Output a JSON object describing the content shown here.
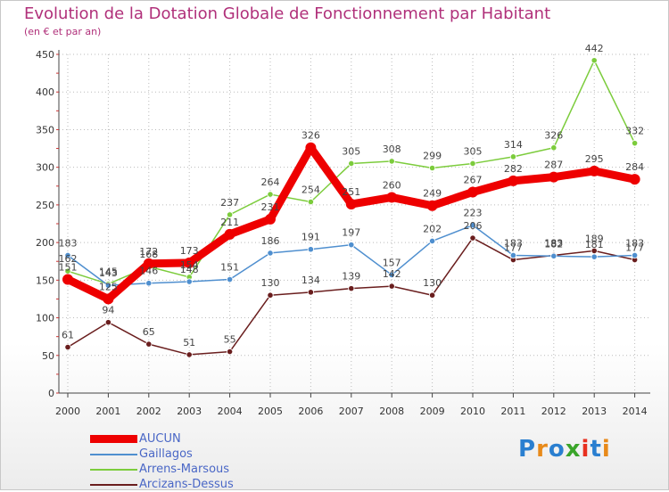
{
  "title": "Evolution de la Dotation Globale de Fonctionnement par Habitant",
  "subtitle": "(en € et par an)",
  "chart_data": {
    "type": "line",
    "title": "Evolution de la Dotation Globale de Fonctionnement par Habitant",
    "ylabel": "(en € et par an)",
    "xlabel": "",
    "x": [
      "2000",
      "2001",
      "2002",
      "2003",
      "2004",
      "2005",
      "2006",
      "2007",
      "2008",
      "2009",
      "2010",
      "2011",
      "2012",
      "2013",
      "2014"
    ],
    "ylim": [
      0,
      450
    ],
    "yticks": [
      0,
      50,
      100,
      150,
      200,
      250,
      300,
      350,
      400,
      450
    ],
    "grid": true,
    "series": [
      {
        "name": "AUCUN",
        "color": "#ee0000",
        "values": [
          151,
          125,
          172,
          173,
          211,
          231,
          326,
          251,
          260,
          249,
          267,
          282,
          287,
          295,
          284
        ]
      },
      {
        "name": "Gaillagos",
        "color": "#4f8fcf",
        "values": [
          183,
          143,
          146,
          148,
          151,
          186,
          191,
          197,
          157,
          202,
          223,
          183,
          182,
          181,
          183
        ]
      },
      {
        "name": "Arrens-Marsous",
        "color": "#7ccc3c",
        "values": [
          162,
          145,
          168,
          154,
          237,
          264,
          254,
          305,
          308,
          299,
          305,
          314,
          326,
          442,
          332
        ]
      },
      {
        "name": "Arcizans-Dessus",
        "color": "#6a1e1e",
        "values": [
          61,
          94,
          65,
          51,
          55,
          130,
          134,
          139,
          142,
          130,
          206,
          177,
          183,
          189,
          177
        ]
      }
    ]
  },
  "legend": [
    {
      "label": "AUCUN",
      "color": "#ee0000"
    },
    {
      "label": "Gaillagos",
      "color": "#4f8fcf"
    },
    {
      "label": "Arrens-Marsous",
      "color": "#7ccc3c"
    },
    {
      "label": "Arcizans-Dessus",
      "color": "#6a1e1e"
    }
  ],
  "logo": {
    "text": "Proxiti",
    "letters": [
      "P",
      "r",
      "o",
      "x",
      "i",
      "t",
      "i"
    ],
    "colors": [
      "#2a7fd0",
      "#e88a1a",
      "#2a7fd0",
      "#3aa52a",
      "#e83020",
      "#2a7fd0",
      "#e88a1a"
    ]
  }
}
